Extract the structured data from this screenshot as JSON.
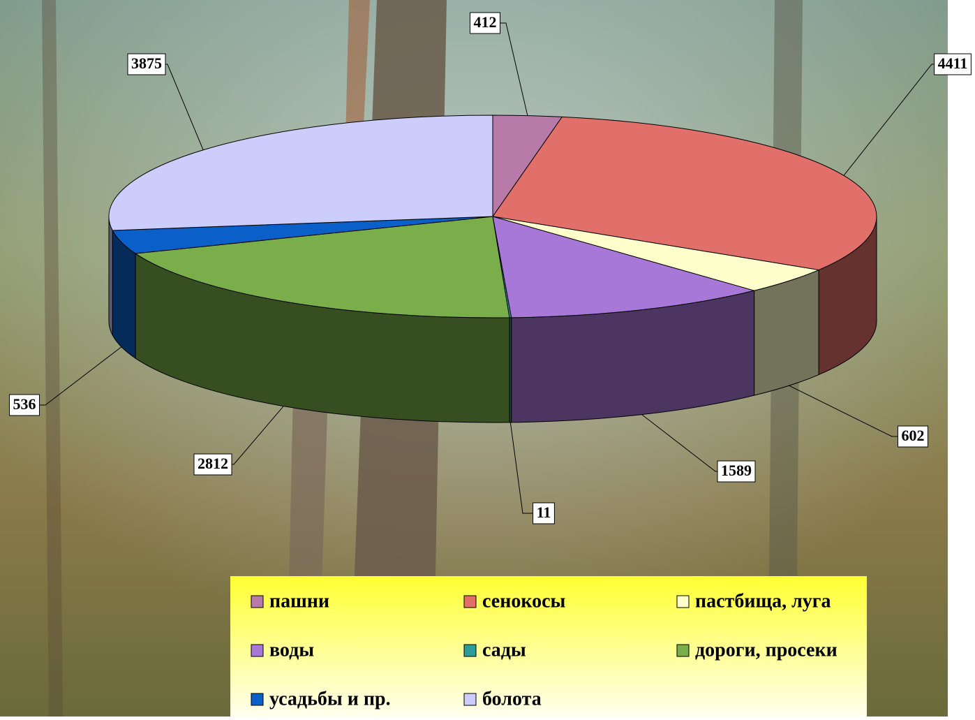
{
  "chart_data": {
    "type": "pie",
    "categories": [
      "пашни",
      "сенокосы",
      "пастбища, луга",
      "воды",
      "сады",
      "дороги, просеки",
      "усадьбы и пр.",
      "болота"
    ],
    "values": [
      412,
      4411,
      602,
      1589,
      11,
      2812,
      536,
      3875
    ],
    "colors": [
      "#b87aa8",
      "#e2706a",
      "#ffffcc",
      "#a878d8",
      "#2f9c9c",
      "#7aae4a",
      "#0a5fc8",
      "#cccdfb"
    ],
    "legend": "bottom"
  }
}
